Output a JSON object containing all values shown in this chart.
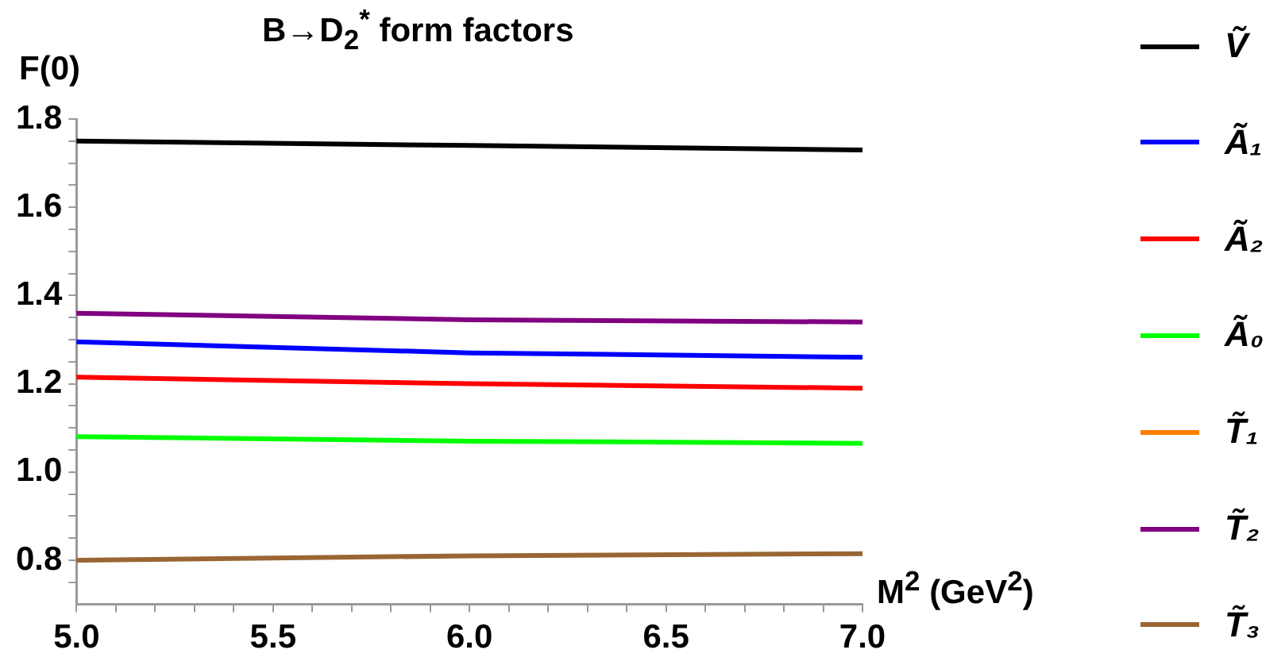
{
  "chart_data": {
    "type": "line",
    "title": "B→D$_{2}$$^{*}$ form factors",
    "xlabel": "M$^{2}$ (GeV$^{2}$)",
    "ylabel": "F(0)",
    "x": [
      5.0,
      6.0,
      7.0
    ],
    "series": [
      {
        "name": "Ṽ",
        "color": "#000000",
        "values": [
          1.75,
          1.74,
          1.73
        ]
      },
      {
        "name": "Ã₁",
        "color": "#0000ff",
        "values": [
          1.295,
          1.27,
          1.26
        ]
      },
      {
        "name": "Ã₂",
        "color": "#ff0000",
        "values": [
          1.215,
          1.2,
          1.19
        ]
      },
      {
        "name": "Ã₀",
        "color": "#00ff00",
        "values": [
          1.08,
          1.07,
          1.065
        ]
      },
      {
        "name": "T̃₁",
        "color": "#ff8000",
        "values": [
          null,
          null,
          null
        ]
      },
      {
        "name": "T̃₂",
        "color": "#800080",
        "values": [
          1.36,
          1.345,
          1.34
        ]
      },
      {
        "name": "T̃₃",
        "color": "#996633",
        "values": [
          0.8,
          0.81,
          0.815
        ]
      }
    ],
    "xlim": [
      5.0,
      7.0
    ],
    "xticks": [
      {
        "value": 5.0,
        "label": "5.0"
      },
      {
        "value": 5.1,
        "label": null
      },
      {
        "value": 5.2,
        "label": null
      },
      {
        "value": 5.3,
        "label": null
      },
      {
        "value": 5.4,
        "label": null
      },
      {
        "value": 5.5,
        "label": "5.5"
      },
      {
        "value": 5.6,
        "label": null
      },
      {
        "value": 5.7,
        "label": null
      },
      {
        "value": 5.8,
        "label": null
      },
      {
        "value": 5.9,
        "label": null
      },
      {
        "value": 6.0,
        "label": "6.0"
      },
      {
        "value": 6.1,
        "label": null
      },
      {
        "value": 6.2,
        "label": null
      },
      {
        "value": 6.3,
        "label": null
      },
      {
        "value": 6.4,
        "label": null
      },
      {
        "value": 6.5,
        "label": "6.5"
      },
      {
        "value": 6.6,
        "label": null
      },
      {
        "value": 6.7,
        "label": null
      },
      {
        "value": 6.8,
        "label": null
      },
      {
        "value": 6.9,
        "label": null
      },
      {
        "value": 7.0,
        "label": "7.0"
      }
    ],
    "ylim": [
      0.7,
      1.8
    ],
    "yticks": [
      {
        "value": 0.75,
        "label": null
      },
      {
        "value": 0.8,
        "label": "0.8"
      },
      {
        "value": 0.85,
        "label": null
      },
      {
        "value": 0.9,
        "label": null
      },
      {
        "value": 0.95,
        "label": null
      },
      {
        "value": 1.0,
        "label": "1.0"
      },
      {
        "value": 1.05,
        "label": null
      },
      {
        "value": 1.1,
        "label": null
      },
      {
        "value": 1.15,
        "label": null
      },
      {
        "value": 1.2,
        "label": "1.2"
      },
      {
        "value": 1.25,
        "label": null
      },
      {
        "value": 1.3,
        "label": null
      },
      {
        "value": 1.35,
        "label": null
      },
      {
        "value": 1.4,
        "label": "1.4"
      },
      {
        "value": 1.45,
        "label": null
      },
      {
        "value": 1.5,
        "label": null
      },
      {
        "value": 1.55,
        "label": null
      },
      {
        "value": 1.6,
        "label": "1.6"
      },
      {
        "value": 1.65,
        "label": null
      },
      {
        "value": 1.7,
        "label": null
      },
      {
        "value": 1.75,
        "label": null
      },
      {
        "value": 1.8,
        "label": "1.8"
      }
    ],
    "grid": false,
    "legend": "right",
    "marker": "none",
    "line_style": "solid"
  }
}
